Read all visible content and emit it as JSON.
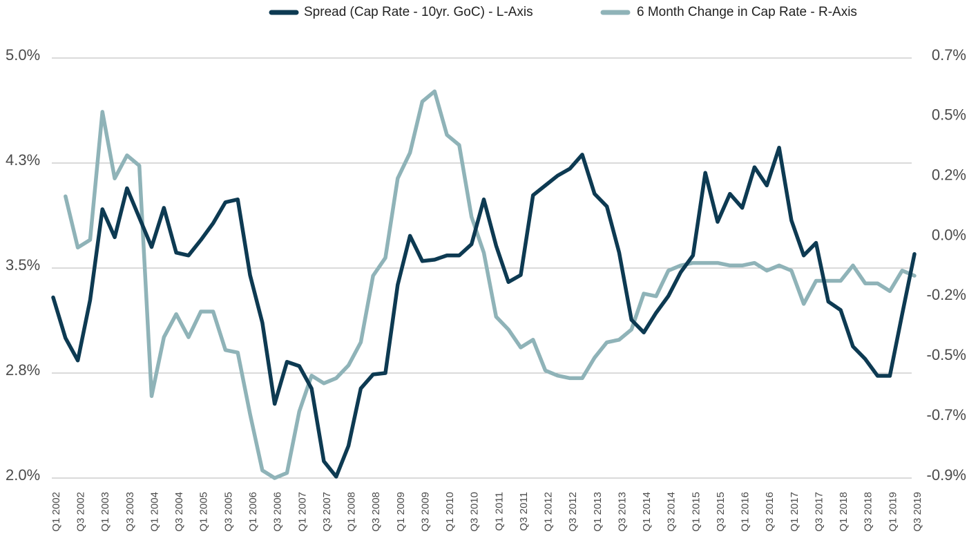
{
  "chart_data": {
    "type": "line",
    "categories": [
      "Q1 2002",
      null,
      "Q3 2002",
      null,
      "Q1 2003",
      null,
      "Q3 2003",
      null,
      "Q1 2004",
      null,
      "Q3 2004",
      null,
      "Q1 2005",
      null,
      "Q3 2005",
      null,
      "Q1 2006",
      null,
      "Q3 2006",
      null,
      "Q1 2007",
      null,
      "Q3 2007",
      null,
      "Q1 2008",
      null,
      "Q3 2008",
      null,
      "Q1 2009",
      null,
      "Q3 2009",
      null,
      "Q1 2010",
      null,
      "Q3 2010",
      null,
      "Q1 2011",
      null,
      "Q3 2011",
      null,
      "Q1 2012",
      null,
      "Q3 2012",
      null,
      "Q1 2013",
      null,
      "Q3 2013",
      null,
      "Q1 2014",
      null,
      "Q3 2014",
      null,
      "Q1 2015",
      null,
      "Q3 2015",
      null,
      "Q1 2016",
      null,
      "Q3 2016",
      null,
      "Q1 2017",
      null,
      "Q3 2017",
      null,
      "Q1 2018",
      null,
      "Q3 2018",
      null,
      "Q1 2019",
      null,
      "Q3 2019"
    ],
    "series": [
      {
        "name": "Spread (Cap Rate - 10yr. GoC) - L-Axis",
        "color": "#0d3a52",
        "axis": "y",
        "values": [
          3.29,
          3.0,
          2.84,
          3.27,
          3.92,
          3.72,
          4.07,
          3.86,
          3.65,
          3.93,
          3.61,
          3.59,
          3.7,
          3.82,
          3.97,
          3.99,
          3.45,
          3.11,
          2.53,
          2.83,
          2.8,
          2.64,
          2.12,
          2.01,
          2.23,
          2.64,
          2.74,
          2.75,
          3.38,
          3.73,
          3.55,
          3.56,
          3.59,
          3.59,
          3.67,
          3.99,
          3.66,
          3.4,
          3.45,
          4.02,
          4.09,
          4.16,
          4.21,
          4.31,
          4.03,
          3.94,
          3.61,
          3.13,
          3.04,
          3.18,
          3.3,
          3.47,
          3.59,
          4.18,
          3.83,
          4.03,
          3.93,
          4.22,
          4.09,
          4.36,
          3.84,
          3.59,
          3.68,
          3.26,
          3.2,
          2.94,
          2.85,
          2.73,
          2.73,
          3.17,
          3.6
        ]
      },
      {
        "name": "6 Month Change in Cap Rate - R-Axis",
        "color": "#8fb3b8",
        "axis": "y2",
        "values": [
          null,
          0.16,
          -0.04,
          -0.01,
          0.49,
          0.23,
          0.32,
          0.28,
          -0.62,
          -0.39,
          -0.3,
          -0.39,
          -0.29,
          -0.29,
          -0.44,
          -0.45,
          -0.69,
          -0.91,
          -0.94,
          -0.92,
          -0.68,
          -0.54,
          -0.57,
          -0.55,
          -0.5,
          -0.41,
          -0.15,
          -0.08,
          0.23,
          0.33,
          0.53,
          0.57,
          0.4,
          0.36,
          0.08,
          -0.06,
          -0.31,
          -0.36,
          -0.43,
          -0.4,
          -0.52,
          -0.54,
          -0.55,
          -0.55,
          -0.47,
          -0.41,
          -0.4,
          -0.36,
          -0.22,
          -0.23,
          -0.13,
          -0.11,
          -0.1,
          -0.1,
          -0.1,
          -0.11,
          -0.11,
          -0.1,
          -0.13,
          -0.11,
          -0.13,
          -0.26,
          -0.17,
          -0.17,
          -0.17,
          -0.11,
          -0.18,
          -0.18,
          -0.21,
          -0.13,
          -0.15
        ]
      }
    ],
    "ylim": [
      2.0,
      5.0
    ],
    "yticks": [
      {
        "value": 2.0,
        "label": "2.0%"
      },
      {
        "value": 2.75,
        "label": "2.8%"
      },
      {
        "value": 3.5,
        "label": "3.5%"
      },
      {
        "value": 4.25,
        "label": "4.3%"
      },
      {
        "value": 5.0,
        "label": "5.0%"
      }
    ],
    "y2lim": [
      -0.94,
      0.7
    ],
    "y2ticks": [
      {
        "value": -0.94,
        "label": "-0.9%"
      },
      {
        "value": -0.706,
        "label": "-0.7%"
      },
      {
        "value": -0.471,
        "label": "-0.5%"
      },
      {
        "value": -0.237,
        "label": "-0.2%"
      },
      {
        "value": -0.003,
        "label": "0.0%"
      },
      {
        "value": 0.231,
        "label": "0.2%"
      },
      {
        "value": 0.466,
        "label": "0.5%"
      },
      {
        "value": 0.7,
        "label": "0.7%"
      }
    ],
    "grid": true,
    "legend": "top-right"
  }
}
